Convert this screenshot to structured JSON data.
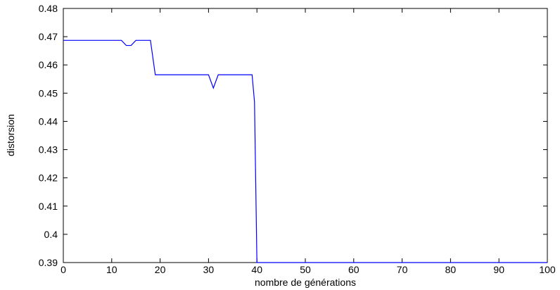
{
  "chart_data": {
    "type": "line",
    "title": "",
    "xlabel": "nombre de générations",
    "ylabel": "distorsion",
    "xlim": [
      0,
      100
    ],
    "ylim": [
      0.39,
      0.48
    ],
    "xticks": [
      0,
      10,
      20,
      30,
      40,
      50,
      60,
      70,
      80,
      90,
      100
    ],
    "yticks": [
      0.39,
      0.4,
      0.41,
      0.42,
      0.43,
      0.44,
      0.45,
      0.46,
      0.47,
      0.48
    ],
    "xtick_labels": [
      "0",
      "10",
      "20",
      "30",
      "40",
      "50",
      "60",
      "70",
      "80",
      "90",
      "100"
    ],
    "ytick_labels": [
      "0.39",
      "0.4",
      "0.41",
      "0.42",
      "0.43",
      "0.44",
      "0.45",
      "0.46",
      "0.47",
      "0.48"
    ],
    "grid": false,
    "series": [
      {
        "color": "#0000ff",
        "x": [
          0,
          12,
          13,
          14,
          15,
          18,
          19,
          30,
          31,
          32,
          39,
          39.5,
          40,
          41,
          100
        ],
        "y": [
          0.4687,
          0.4687,
          0.4669,
          0.4669,
          0.4687,
          0.4687,
          0.4565,
          0.4565,
          0.4518,
          0.4565,
          0.4565,
          0.4469,
          0.39,
          0.39,
          0.39
        ]
      }
    ]
  }
}
